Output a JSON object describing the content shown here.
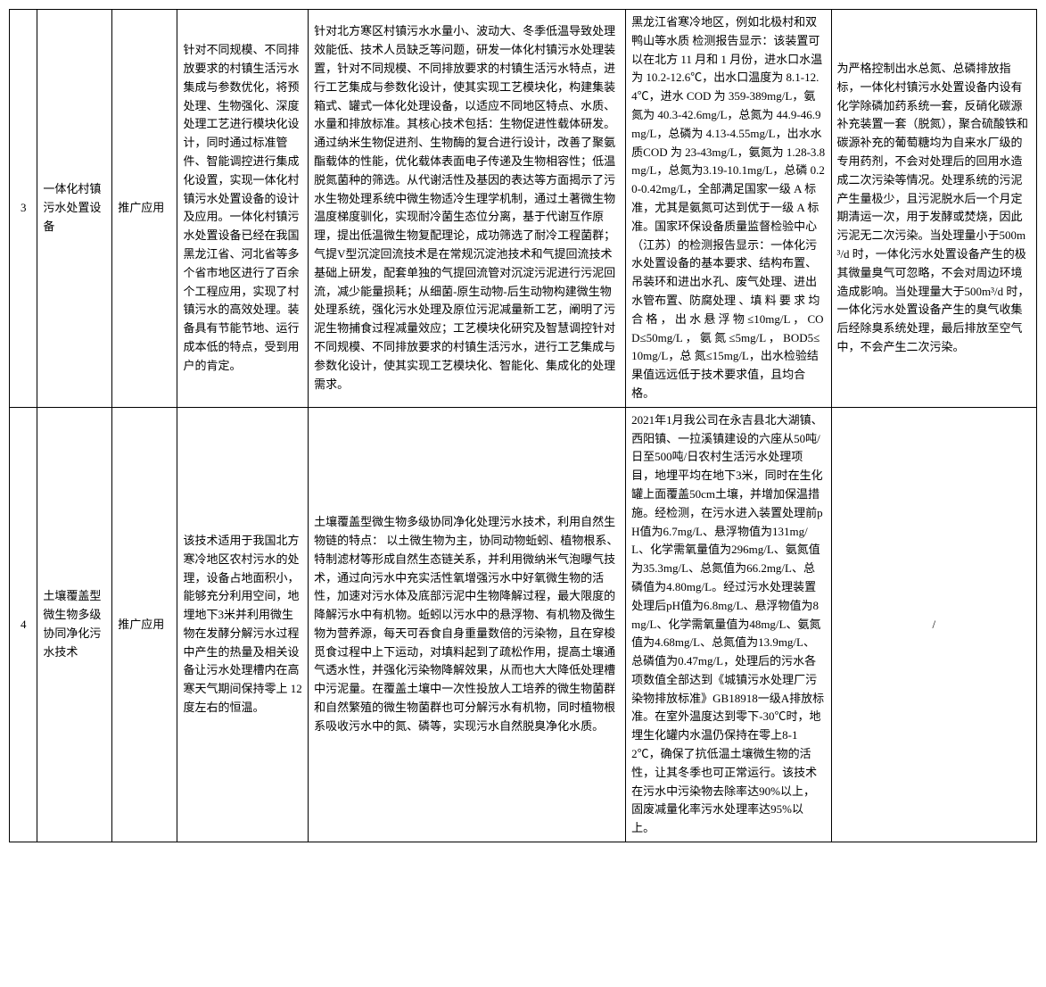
{
  "table": {
    "rows": [
      {
        "num": "3",
        "name": "一体化村镇污水处置设备",
        "category": "推广应用",
        "col4": "针对不同规模、不同排放要求的村镇生活污水集成与参数优化，将预处理、生物强化、深度处理工艺进行模块化设计，同时通过标准管件、智能调控进行集成化设置，实现一体化村镇污水处置设备的设计及应用。一体化村镇污水处置设备已经在我国黑龙江省、河北省等多个省市地区进行了百余个工程应用，实现了村镇污水的高效处理。装备具有节能节地、运行成本低的特点，受到用户的肯定。",
        "col5": "针对北方寒区村镇污水水量小、波动大、冬季低温导致处理效能低、技术人员缺乏等问题，研发一体化村镇污水处理装置，针对不同规模、不同排放要求的村镇生活污水特点，进行工艺集成与参数化设计，使其实现工艺模块化，构建集装箱式、罐式一体化处理设备，以适应不同地区特点、水质、水量和排放标准。其核心技术包括：生物促进性载体研发。通过纳米生物促进剂、生物酶的复合进行设计，改善了聚氨酯载体的性能，优化载体表面电子传递及生物相容性；低温脱氮菌种的筛选。从代谢活性及基因的表达等方面揭示了污水生物处理系统中微生物适冷生理学机制，通过土著微生物温度梯度驯化，实现耐冷菌生态位分离，基于代谢互作原理，提出低温微生物复配理论，成功筛选了耐冷工程菌群；气提V型沉淀回流技术是在常规沉淀池技术和气提回流技术基础上研发，配套单独的气提回流管对沉淀污泥进行污泥回流，减少能量损耗；从细菌-原生动物-后生动物构建微生物处理系统，强化污水处理及原位污泥减量新工艺，阐明了污泥生物捕食过程减量效应；工艺模块化研究及智慧调控针对不同规模、不同排放要求的村镇生活污水，进行工艺集成与参数化设计，使其实现工艺模块化、智能化、集成化的处理需求。",
        "col6": "黑龙江省寒冷地区，例如北极村和双鸭山等水质\n检测报告显示：该装置可以在北方 11 月和 1 月份，进水口水温为 10.2-12.6℃，出水口温度为 8.1-12.4℃，进水 COD 为 359-389mg/L，氨氮为 40.3-42.6mg/L，总氮为 44.9-46.9mg/L，总磷为 4.13-4.55mg/L，出水水质COD 为 23-43mg/L，氨氮为 1.28-3.8mg/L，总氮为3.19-10.1mg/L，总磷 0.20-0.42mg/L，全部满足国家一级 A 标准，尤其是氨氮可达到优于一级 A 标准。国家环保设备质量监督检验中心（江苏）的检测报告显示：一体化污水处置设备的基本要求、结构布置、吊装环和进出水孔、废气处理、进出水管布置、防腐处理 、填 料 要 求 均 合 格 ， 出 水 悬 浮 物 ≤10mg/L ， COD≤50mg/L ， 氨 氮 ≤5mg/L ， BOD5≤10mg/L，总 氮≤15mg/L，出水检验结果值远远低于技术要求值，且均合格。",
        "col7": "为严格控制出水总氮、总磷排放指标，一体化村镇污水处置设备内设有化学除磷加药系统一套，反硝化碳源补充装置一套（脱氮），聚合硫酸铁和碳源补充的葡萄糖均为自来水厂级的专用药剂，不会对处理后的回用水造成二次污染等情况。处理系统的污泥产生量极少，且污泥脱水后一个月定期清运一次，用于发酵或焚烧，因此污泥无二次污染。当处理量小于500m³/d 时，一体化污水处置设备产生的极其微量臭气可忽略，不会对周边环境造成影响。当处理量大于500m³/d 时，一体化污水处置设备产生的臭气收集后经除臭系统处理，最后排放至空气中，不会产生二次污染。"
      },
      {
        "num": "4",
        "name": "土壤覆盖型微生物多级协同净化污水技术",
        "category": "推广应用",
        "col4": "该技术适用于我国北方寒冷地区农村污水的处理，设备占地面积小，能够充分利用空间，地埋地下3米并利用微生物在发酵分解污水过程中产生的热量及相关设备让污水处理槽内在高寒天气期间保持零上 12 度左右的恒温。",
        "col5": "土壤覆盖型微生物多级协同净化处理污水技术，利用自然生物链的特点： 以土微生物为主，协同动物蚯蚓、植物根系、特制滤材等形成自然生态链关系，并利用微纳米气泡曝气技术，通过向污水中充实活性氧增强污水中好氧微生物的活性，加速对污水体及底部污泥中生物降解过程，最大限度的降解污水中有机物。蚯蚓以污水中的悬浮物、有机物及微生物为营养源，每天可吞食自身重量数倍的污染物，且在穿梭觅食过程中上下运动，对填料起到了疏松作用，提高土壤通气透水性，并强化污染物降解效果，从而也大大降低处理槽中污泥量。在覆盖土壤中一次性投放人工培养的微生物菌群和自然繁殖的微生物菌群也可分解污水有机物，同时植物根系吸收污水中的氮、磷等，实现污水自然脱臭净化水质。",
        "col6": "2021年1月我公司在永吉县北大湖镇、西阳镇、一拉溪镇建设的六座从50吨/日至500吨/日农村生活污水处理项目，地埋平均在地下3米，同时在生化罐上面覆盖50cm土壤，并增加保温措施。经检测，在污水进入装置处理前pH值为6.7mg/L、悬浮物值为131mg/L、化学需氧量值为296mg/L、氨氮值为35.3mg/L、总氮值为66.2mg/L、总磷值为4.80mg/L。经过污水处理装置处理后pH值为6.8mg/L、悬浮物值为8mg/L、化学需氧量值为48mg/L、氨氮值为4.68mg/L、总氮值为13.9mg/L、总磷值为0.47mg/L，处理后的污水各项数值全部达到《城镇污水处理厂污染物排放标准》GB18918一级A排放标准。在室外温度达到零下-30℃时，地埋生化罐内水温仍保持在零上8-12℃，确保了抗低温土壤微生物的活性，让其冬季也可正常运行。该技术在污水中污染物去除率达90%以上，固废减量化率污水处理率达95%以上。",
        "col7": "/"
      }
    ]
  },
  "styles": {
    "font_size": 13,
    "border_color": "#000000",
    "background": "#ffffff"
  }
}
